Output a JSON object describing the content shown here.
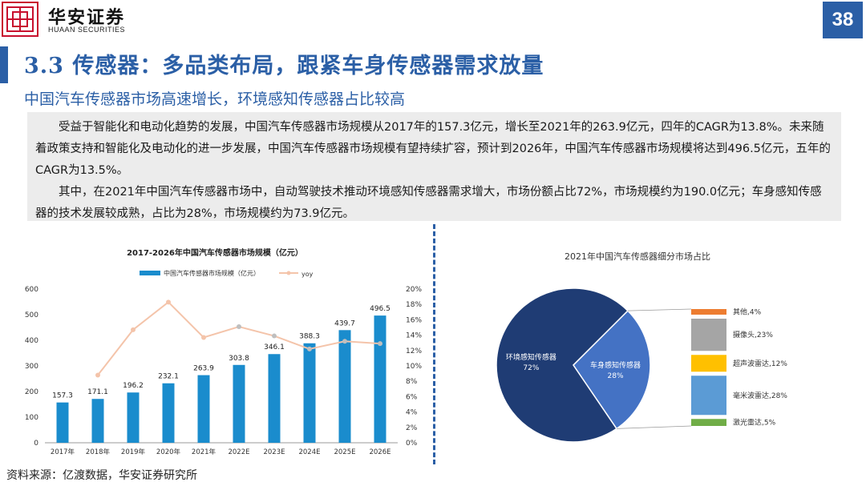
{
  "header": {
    "logo_cn": "华安证券",
    "logo_en": "HUAAN SECURITIES",
    "page_number": "38"
  },
  "title": "3.3 传感器：多品类布局，跟紧车身传感器需求放量",
  "subtitle": "中国汽车传感器市场高速增长，环境感知传感器占比较高",
  "paragraphs": [
    "受益于智能化和电动化趋势的发展，中国汽车传感器市场规模从2017年的157.3亿元，增长至2021年的263.9亿元，四年的CAGR为13.8%。未来随着政策支持和智能化及电动化的进一步发展，中国汽车传感器市场规模有望持续扩容，预计到2026年，中国汽车传感器市场规模将达到496.5亿元，五年的CAGR为13.5%。",
    "其中，在2021年中国汽车传感器市场中，自动驾驶技术推动环境感知传感器需求增大，市场份额占比72%，市场规模约为190.0亿元；车身感知传感器的技术发展较成熟，占比为28%，市场规模约为73.9亿元。"
  ],
  "source": "资料来源：亿渡数据，华安证券研究所",
  "colors": {
    "accent": "#2b5fa6",
    "bar": "#1a8ccd",
    "line": "#f4c4aa",
    "dot": "#bfbfbf"
  },
  "chart_data": [
    {
      "type": "bar",
      "title": "2017-2026年中国汽车传感器市场规模（亿元）",
      "categories": [
        "2017年",
        "2018年",
        "2019年",
        "2020年",
        "2021年",
        "2022E",
        "2023E",
        "2024E",
        "2025E",
        "2026E"
      ],
      "series": [
        {
          "name": "中国汽车传感器市场规模（亿元）",
          "type": "bar",
          "axis": "left",
          "values": [
            157.3,
            171.1,
            196.2,
            232.1,
            263.9,
            303.8,
            346.1,
            388.3,
            439.7,
            496.5
          ]
        },
        {
          "name": "yoy",
          "type": "line",
          "axis": "right",
          "values": [
            null,
            8.8,
            14.7,
            18.3,
            13.7,
            15.1,
            13.9,
            12.2,
            13.2,
            12.9
          ]
        }
      ],
      "ylim_left": [
        0,
        600
      ],
      "yticks_left": [
        "0",
        "100",
        "200",
        "300",
        "400",
        "500",
        "600"
      ],
      "ylim_right": [
        0,
        20
      ],
      "yticks_right": [
        "0%",
        "2%",
        "4%",
        "6%",
        "8%",
        "10%",
        "12%",
        "14%",
        "16%",
        "18%",
        "20%"
      ],
      "legend": "top",
      "grid": false
    },
    {
      "type": "pie",
      "title": "2021年中国汽车传感器细分市场占比",
      "slices": [
        {
          "label": "车身感知传感器",
          "value": 28,
          "value_label": "28%",
          "color": "#4472c4"
        },
        {
          "label": "环境感知传感器",
          "value": 72,
          "value_label": "72%",
          "color": "#1f3c74"
        }
      ],
      "breakdown": [
        {
          "label": "其他,4%",
          "value": 4,
          "color": "#ed7d31"
        },
        {
          "label": "摄像头,23%",
          "value": 23,
          "color": "#a5a5a5"
        },
        {
          "label": "超声波雷达,12%",
          "value": 12,
          "color": "#ffc000"
        },
        {
          "label": "毫米波雷达,28%",
          "value": 28,
          "color": "#5b9bd5"
        },
        {
          "label": "激光雷达,5%",
          "value": 5,
          "color": "#70ad47"
        }
      ]
    }
  ]
}
